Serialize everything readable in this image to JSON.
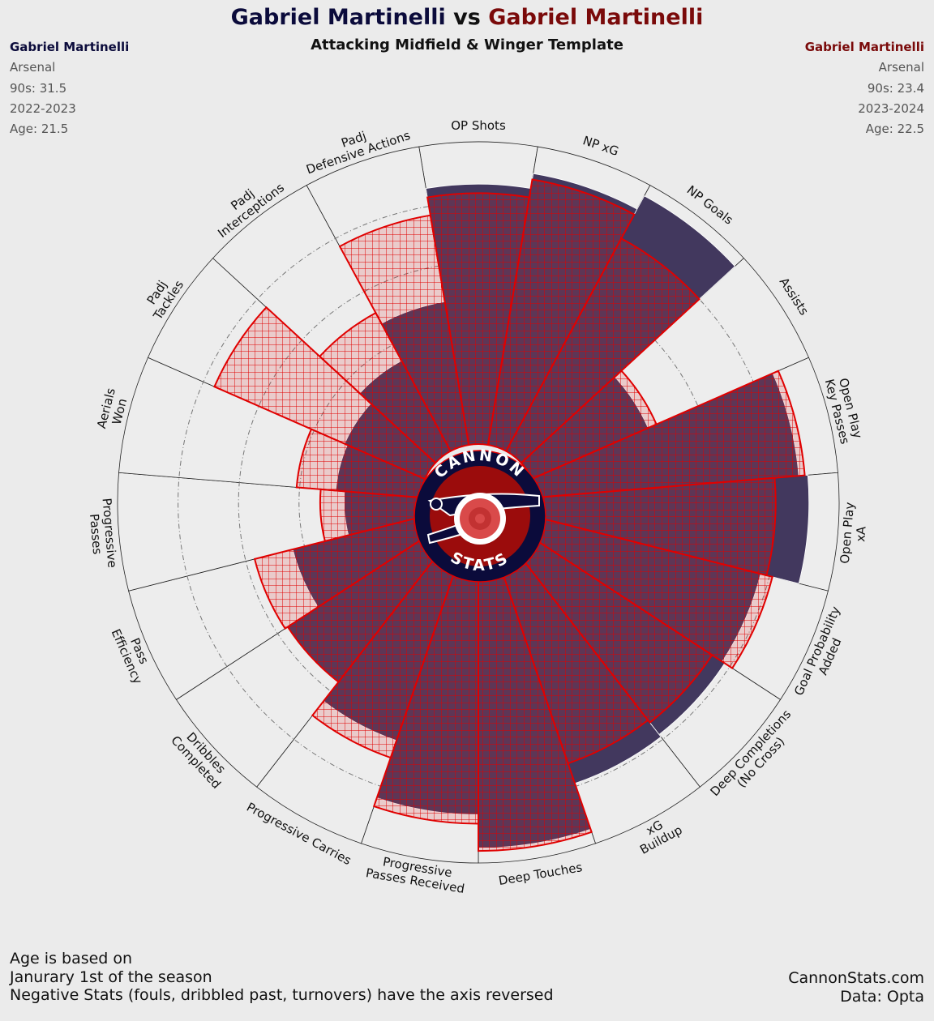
{
  "header": {
    "player1": "Gabriel Martinelli",
    "vs": "vs",
    "player2": "Gabriel Martinelli",
    "subtitle": "Attacking Midfield & Winger Template"
  },
  "left_info": {
    "name": "Gabriel Martinelli",
    "team": "Arsenal",
    "nineties": "90s: 31.5",
    "season": "2022-2023",
    "age": "Age: 21.5"
  },
  "right_info": {
    "name": "Gabriel Martinelli",
    "team": "Arsenal",
    "nineties": "90s: 23.4",
    "season": "2023-2024",
    "age": "Age: 22.5"
  },
  "footer": {
    "note_line1": "Age is based on",
    "note_line2": "Janurary 1st of the season",
    "note_line3": "Negative Stats (fouls, dribbled past, turnovers) have the axis reversed",
    "site": "CannonStats.com",
    "source": "Data: Opta"
  },
  "logo": {
    "top_text": "CANNON",
    "bottom_text": "STATS"
  },
  "colors": {
    "background": "#ebebeb",
    "player1_fill": "#42385e",
    "player2_fill": "#e03030",
    "player2_edge": "#e00000",
    "player1_title": "#0b0b3b",
    "player2_title": "#7a0a0a"
  },
  "chart_data": {
    "type": "polar-bar",
    "title": "Gabriel Martinelli vs Gabriel Martinelli",
    "subtitle": "Attacking Midfield & Winger Template",
    "categories": [
      {
        "label": "OP Shots"
      },
      {
        "label": "NP xG"
      },
      {
        "label": "NP Goals"
      },
      {
        "label": "Assists"
      },
      {
        "label": "Open Play\nKey Passes"
      },
      {
        "label": "Open Play\nxA"
      },
      {
        "label": "Goal Probability\nAdded"
      },
      {
        "label": "Deep Completions\n(No Cross)"
      },
      {
        "label": "xG\nBuildup"
      },
      {
        "label": "Deep Touches"
      },
      {
        "label": "Progressive\nPasses Received"
      },
      {
        "label": "Progressive Carries"
      },
      {
        "label": "Dribbles\nCompleted"
      },
      {
        "label": "Pass\nEfficiency"
      },
      {
        "label": "Progressive\nPasses"
      },
      {
        "label": "Aerials\nWon"
      },
      {
        "label": "Padj\nTackles"
      },
      {
        "label": "Padj\nInterceptions"
      },
      {
        "label": "Padj\nDefensive Actions"
      }
    ],
    "series": [
      {
        "name": "Gabriel Martinelli",
        "season": "2022-2023",
        "values": [
          86,
          91,
          96,
          42,
          87,
          90,
          77,
          78,
          79,
          95,
          84,
          64,
          56,
          44,
          25,
          28,
          29,
          34,
          48
        ]
      },
      {
        "name": "Gabriel Martinelli",
        "season": "2023-2024",
        "values": [
          83,
          89,
          80,
          45,
          89,
          79,
          81,
          73,
          72,
          96,
          87,
          70,
          56,
          57,
          33,
          41,
          76,
          52,
          77
        ]
      }
    ],
    "rlim": [
      0,
      100
    ],
    "grid": true
  }
}
